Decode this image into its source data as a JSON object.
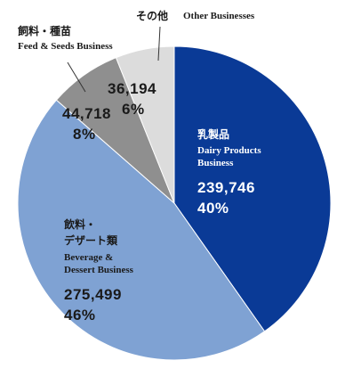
{
  "chart_data": {
    "type": "pie",
    "start_angle_deg": 0,
    "direction": "clockwise",
    "slices": [
      {
        "key": "dairy",
        "label_ja": "乳製品",
        "label_en_1": "Dairy Products",
        "label_en_2": "Business",
        "value": 239746,
        "value_text": "239,746",
        "percent": 40,
        "percent_text": "40%",
        "color": "#0a3a96"
      },
      {
        "key": "beverage",
        "label_ja_1": "飲料・",
        "label_ja_2": "デザート類",
        "label_en_1": "Beverage &",
        "label_en_2": "Dessert Business",
        "value": 275499,
        "value_text": "275,499",
        "percent": 46,
        "percent_text": "46%",
        "color": "#7fa2d3"
      },
      {
        "key": "feed",
        "label_ja": "飼料・種苗",
        "label_en": "Feed & Seeds Business",
        "value": 44718,
        "value_text": "44,718",
        "percent": 8,
        "percent_text": "8%",
        "color": "#8f8f8f"
      },
      {
        "key": "other",
        "label_ja": "その他",
        "label_en": "Other Businesses",
        "value": 36194,
        "value_text": "36,194",
        "percent": 6,
        "percent_text": "6%",
        "color": "#dcdcdc"
      }
    ]
  }
}
